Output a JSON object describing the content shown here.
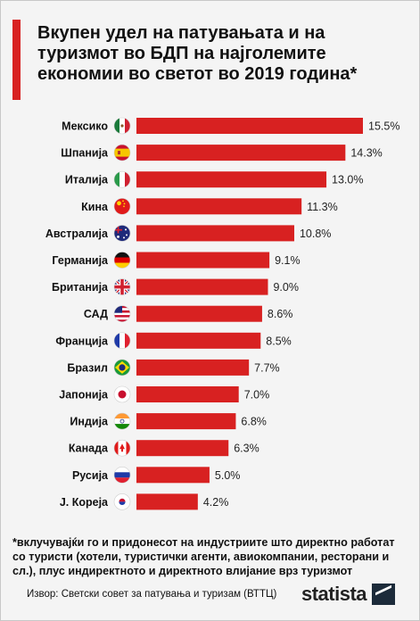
{
  "title": "Вкупен удел на патувањата и на туризмот во БДП на најголемите економии во светот во 2019 година*",
  "footnote": "*вклучувајќи го и придонесот на индустриите што директно работат со туристи (хотели, туристички агенти, авиокомпании, ресторани и сл.), плус индиректното и директното влијание врз туризмот",
  "source": "Извор: Светски совет за патувања и туризам (ВТТЦ)",
  "brand": "statista",
  "colors": {
    "bar": "#d82121",
    "accent": "#d82121",
    "background": "#f4f4f4"
  },
  "chart_data": {
    "type": "bar",
    "orientation": "horizontal",
    "categories": [
      "Мексико",
      "Шпанија",
      "Италија",
      "Кина",
      "Австралија",
      "Германија",
      "Британија",
      "САД",
      "Франција",
      "Бразил",
      "Јапонија",
      "Индија",
      "Канада",
      "Русија",
      "Ј. Кореја"
    ],
    "values": [
      15.5,
      14.3,
      13.0,
      11.3,
      10.8,
      9.1,
      9.0,
      8.6,
      8.5,
      7.7,
      7.0,
      6.8,
      6.3,
      5.0,
      4.2
    ],
    "value_labels": [
      "15.5%",
      "14.3%",
      "13.0%",
      "11.3%",
      "10.8%",
      "9.1%",
      "9.0%",
      "8.6%",
      "8.5%",
      "7.7%",
      "7.0%",
      "6.8%",
      "6.3%",
      "5.0%",
      "4.2%"
    ],
    "flags": [
      "mexico-flag",
      "spain-flag",
      "italy-flag",
      "china-flag",
      "australia-flag",
      "germany-flag",
      "uk-flag",
      "usa-flag",
      "france-flag",
      "brazil-flag",
      "japan-flag",
      "india-flag",
      "canada-flag",
      "russia-flag",
      "south-korea-flag"
    ],
    "xlim": [
      0,
      15.5
    ],
    "grid": false,
    "legend": "none"
  }
}
